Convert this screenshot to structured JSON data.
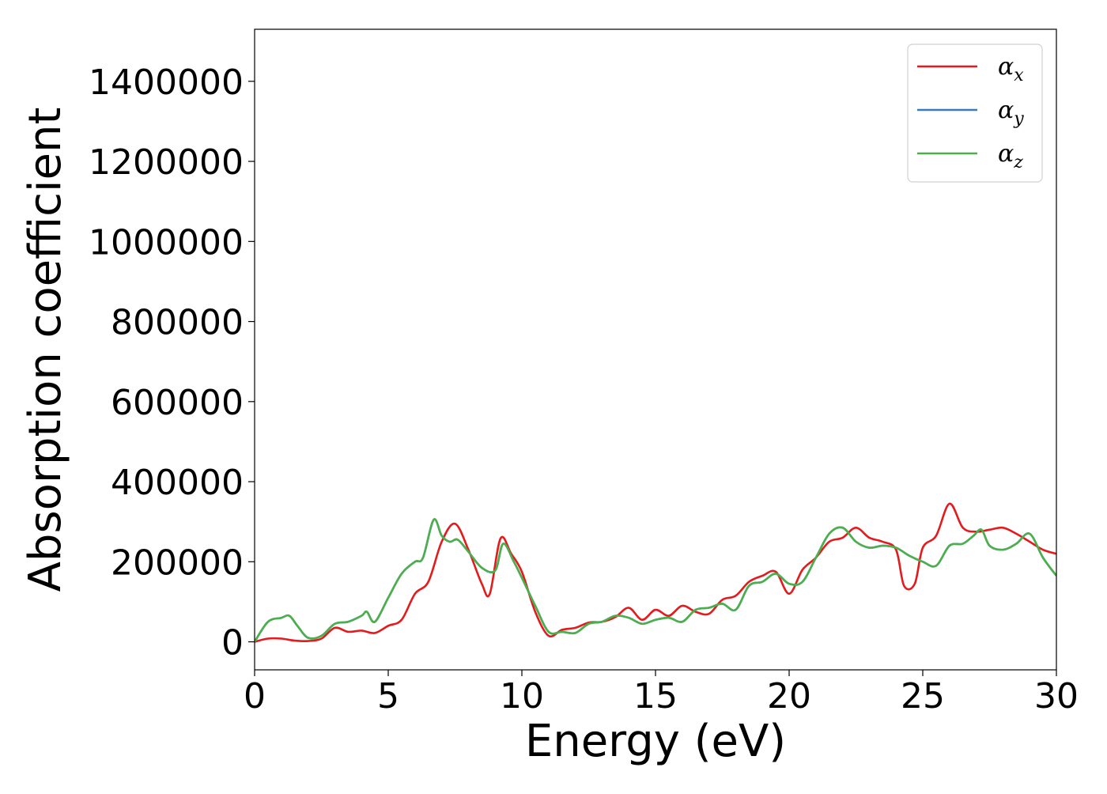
{
  "chart_data": {
    "type": "line",
    "xlabel": "Energy (eV)",
    "ylabel": "Absorption coefficient",
    "xlim": [
      0,
      30
    ],
    "ylim": [
      -70000,
      1530000
    ],
    "xticks": [
      0,
      5,
      10,
      15,
      20,
      25,
      30
    ],
    "yticks": [
      0,
      200000,
      400000,
      600000,
      800000,
      1000000,
      1200000,
      1400000
    ],
    "grid": false,
    "legend_position": "top-right",
    "series": [
      {
        "name": "α",
        "subscript": "x",
        "color": "#e41a1c",
        "x": [
          0,
          0.5,
          1,
          1.5,
          2,
          2.5,
          3,
          3.5,
          4,
          4.5,
          5,
          5.5,
          6,
          6.5,
          7,
          7.5,
          8,
          8.5,
          8.8,
          9.2,
          9.6,
          10,
          10.5,
          11,
          11.5,
          12,
          12.5,
          13,
          13.5,
          14,
          14.5,
          15,
          15.5,
          16,
          16.5,
          17,
          17.5,
          18,
          18.5,
          19,
          19.5,
          20,
          20.5,
          21,
          21.5,
          22,
          22.5,
          23,
          23.5,
          24,
          24.3,
          24.7,
          25,
          25.5,
          26,
          26.5,
          27,
          27.5,
          28,
          28.5,
          29,
          29.5,
          30
        ],
        "y": [
          0,
          8000,
          8000,
          3000,
          2000,
          8000,
          35000,
          25000,
          28000,
          22000,
          40000,
          55000,
          120000,
          150000,
          250000,
          295000,
          230000,
          145000,
          120000,
          258000,
          220000,
          175000,
          75000,
          15000,
          30000,
          35000,
          48000,
          50000,
          62000,
          85000,
          55000,
          80000,
          65000,
          90000,
          75000,
          70000,
          105000,
          115000,
          150000,
          165000,
          175000,
          120000,
          180000,
          210000,
          250000,
          260000,
          285000,
          260000,
          250000,
          230000,
          140000,
          145000,
          235000,
          265000,
          345000,
          285000,
          275000,
          280000,
          285000,
          270000,
          250000,
          230000,
          220000
        ]
      },
      {
        "name": "α",
        "subscript": "y",
        "color": "#377eb8",
        "x": [
          0,
          0.5,
          1,
          1.3,
          1.6,
          2,
          2.5,
          3,
          3.5,
          4,
          4.2,
          4.5,
          5,
          5.5,
          6,
          6.3,
          6.7,
          7,
          7.3,
          7.6,
          8,
          8.5,
          9,
          9.3,
          9.7,
          10,
          10.5,
          11,
          11.5,
          12,
          12.5,
          13,
          13.5,
          14,
          14.5,
          15,
          15.5,
          16,
          16.5,
          17,
          17.5,
          18,
          18.5,
          19,
          19.5,
          20,
          20.5,
          21,
          21.5,
          22,
          22.5,
          23,
          23.5,
          24,
          24.5,
          25,
          25.5,
          26,
          26.5,
          26.9,
          27.2,
          27.5,
          28,
          28.5,
          29,
          29.5,
          30
        ],
        "y": [
          0,
          50000,
          60000,
          65000,
          40000,
          10000,
          15000,
          45000,
          50000,
          65000,
          75000,
          50000,
          110000,
          170000,
          200000,
          210000,
          305000,
          265000,
          250000,
          255000,
          225000,
          185000,
          178000,
          245000,
          200000,
          160000,
          90000,
          25000,
          25000,
          22000,
          45000,
          50000,
          65000,
          60000,
          45000,
          55000,
          60000,
          50000,
          80000,
          85000,
          95000,
          80000,
          140000,
          150000,
          170000,
          145000,
          150000,
          210000,
          270000,
          285000,
          250000,
          235000,
          240000,
          235000,
          215000,
          200000,
          190000,
          240000,
          245000,
          265000,
          280000,
          240000,
          230000,
          245000,
          270000,
          210000,
          165000
        ]
      },
      {
        "name": "α",
        "subscript": "z",
        "color": "#4daf4a",
        "x": [
          0,
          0.5,
          1,
          1.3,
          1.6,
          2,
          2.5,
          3,
          3.5,
          4,
          4.2,
          4.5,
          5,
          5.5,
          6,
          6.3,
          6.7,
          7,
          7.3,
          7.6,
          8,
          8.5,
          9,
          9.3,
          9.7,
          10,
          10.5,
          11,
          11.5,
          12,
          12.5,
          13,
          13.5,
          14,
          14.5,
          15,
          15.5,
          16,
          16.5,
          17,
          17.5,
          18,
          18.5,
          19,
          19.5,
          20,
          20.5,
          21,
          21.5,
          22,
          22.5,
          23,
          23.5,
          24,
          24.5,
          25,
          25.5,
          26,
          26.5,
          26.9,
          27.2,
          27.5,
          28,
          28.5,
          29,
          29.5,
          30
        ],
        "y": [
          0,
          50000,
          60000,
          65000,
          40000,
          10000,
          15000,
          45000,
          50000,
          65000,
          75000,
          50000,
          110000,
          170000,
          200000,
          210000,
          305000,
          265000,
          250000,
          255000,
          225000,
          185000,
          178000,
          245000,
          200000,
          160000,
          90000,
          25000,
          25000,
          22000,
          45000,
          50000,
          65000,
          60000,
          45000,
          55000,
          60000,
          50000,
          80000,
          85000,
          95000,
          80000,
          140000,
          150000,
          170000,
          145000,
          150000,
          210000,
          270000,
          285000,
          250000,
          235000,
          240000,
          235000,
          215000,
          200000,
          190000,
          240000,
          245000,
          265000,
          280000,
          240000,
          230000,
          245000,
          270000,
          210000,
          165000
        ]
      }
    ]
  }
}
